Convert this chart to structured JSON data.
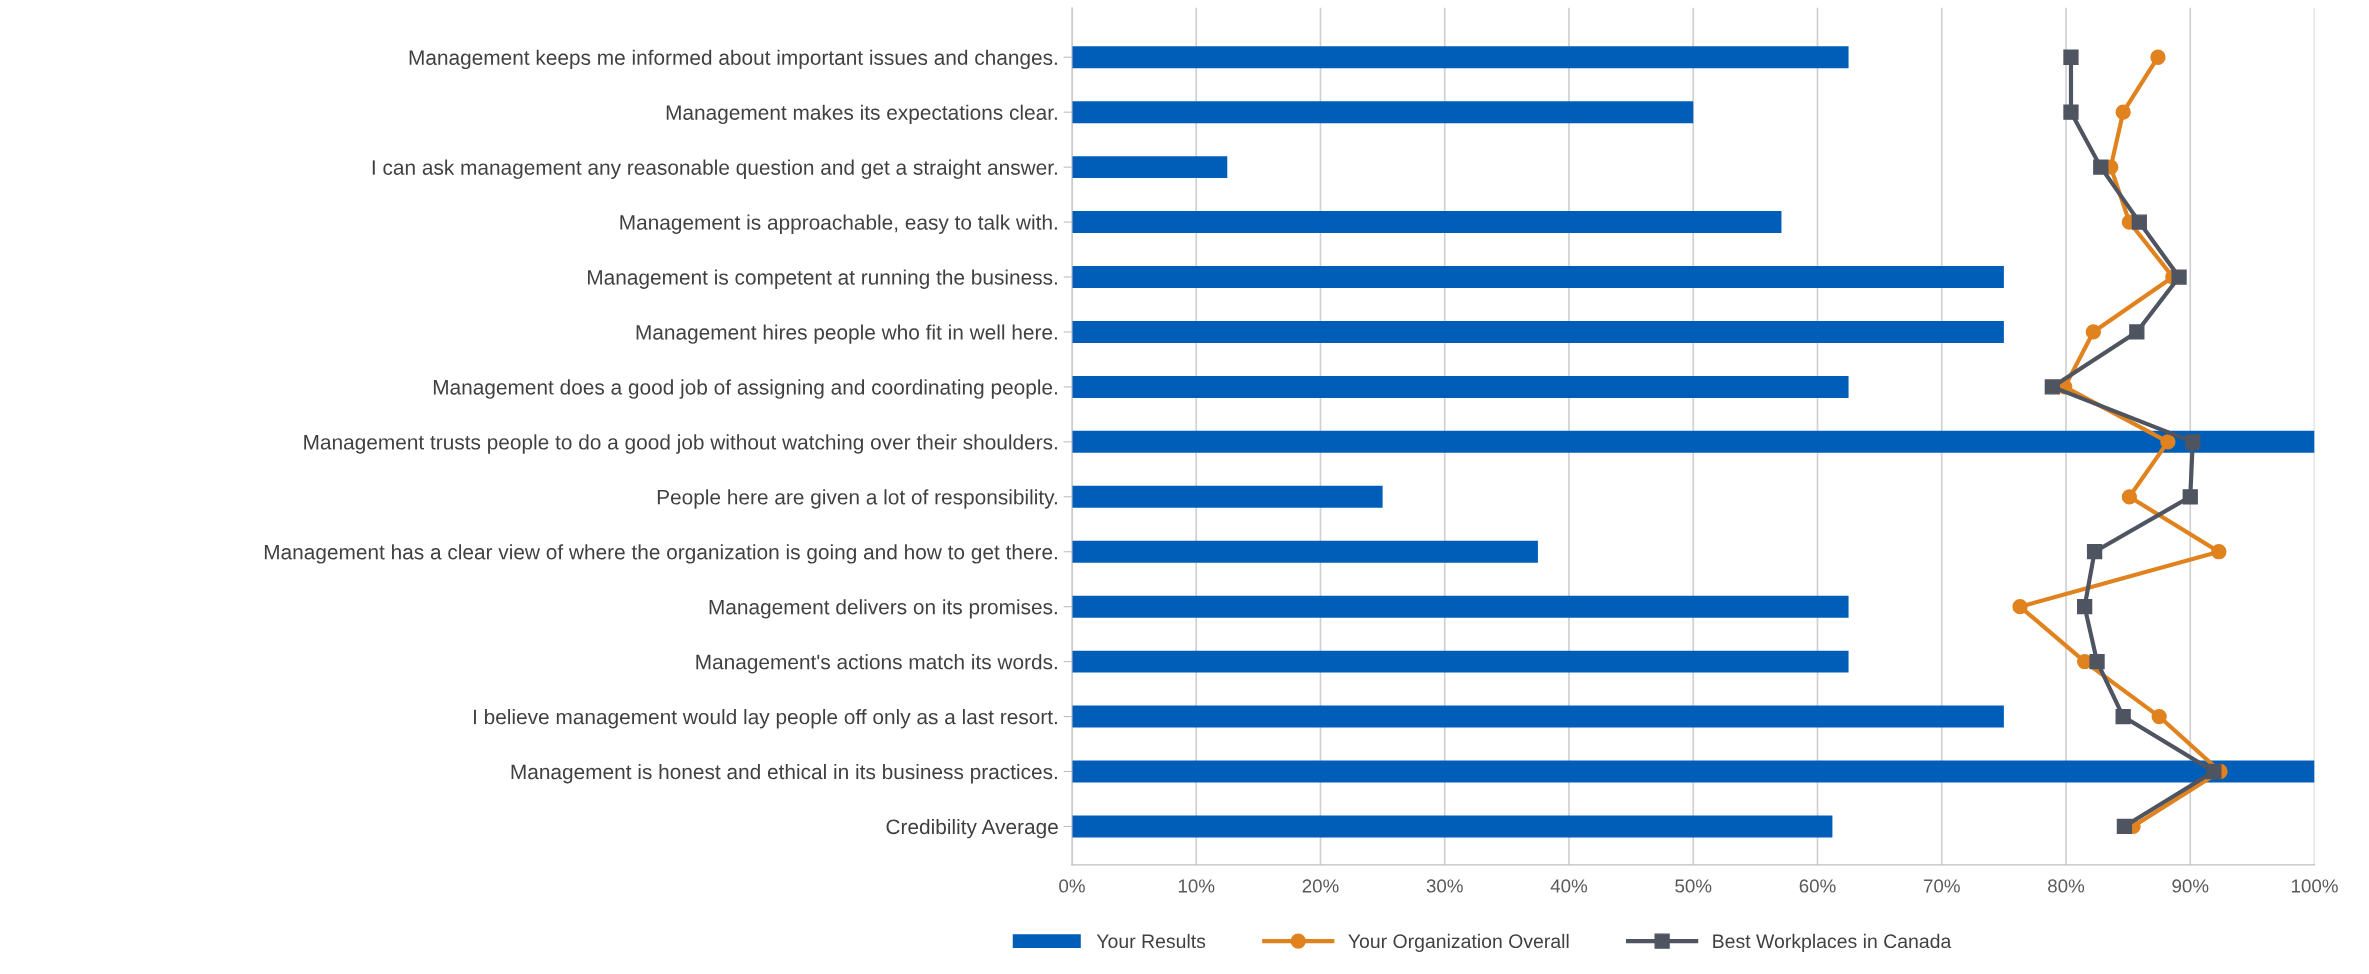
{
  "chart_data": {
    "type": "bar",
    "orientation": "horizontal",
    "categories": [
      "Management keeps me informed about important issues and changes.",
      "Management makes its expectations clear.",
      "I can ask management any reasonable question and get a straight answer.",
      "Management is approachable, easy to talk with.",
      "Management is competent at running the business.",
      "Management hires people who fit in well here.",
      "Management does a good job of assigning and coordinating people.",
      "Management trusts people to do a good job without watching over their shoulders.",
      "People here are given a lot of responsibility.",
      "Management has a clear view of where the organization is going and how to get there.",
      "Management delivers on its promises.",
      "Management's actions match its words.",
      "I believe management would lay people off only as a last resort.",
      "Management is honest and ethical in its business practices.",
      "Credibility Average"
    ],
    "series": [
      {
        "name": "Your Results",
        "color": "#005eb8",
        "values": [
          62.5,
          50,
          12.5,
          57.1,
          75,
          75,
          62.5,
          100,
          25,
          37.5,
          62.5,
          62.5,
          75,
          100,
          61.2
        ]
      },
      {
        "name": "Your Organization Overall",
        "type": "line",
        "marker": "circle",
        "color": "#e0821e",
        "values": [
          87.4,
          84.6,
          83.6,
          85.1,
          88.6,
          82.2,
          79.9,
          88.2,
          85.1,
          92.3,
          76.3,
          81.5,
          87.5,
          92.4,
          85.4
        ]
      },
      {
        "name": "Best Workplaces in Canada",
        "type": "line",
        "marker": "square",
        "color": "#4f5461",
        "values": [
          80.4,
          80.4,
          82.8,
          85.9,
          89.1,
          85.7,
          78.9,
          90.2,
          90.0,
          82.3,
          81.5,
          82.5,
          84.6,
          91.9,
          84.7
        ]
      }
    ],
    "xlim": [
      0,
      100
    ],
    "xticks": [
      {
        "value": 0,
        "label": "0%"
      },
      {
        "value": 10,
        "label": "10%"
      },
      {
        "value": 20,
        "label": "20%"
      },
      {
        "value": 30,
        "label": "30%"
      },
      {
        "value": 40,
        "label": "40%"
      },
      {
        "value": 50,
        "label": "50%"
      },
      {
        "value": 60,
        "label": "60%"
      },
      {
        "value": 70,
        "label": "70%"
      },
      {
        "value": 80,
        "label": "80%"
      },
      {
        "value": 90,
        "label": "90%"
      },
      {
        "value": 100,
        "label": "100%"
      }
    ],
    "grid": "x",
    "legend": "bottom"
  }
}
